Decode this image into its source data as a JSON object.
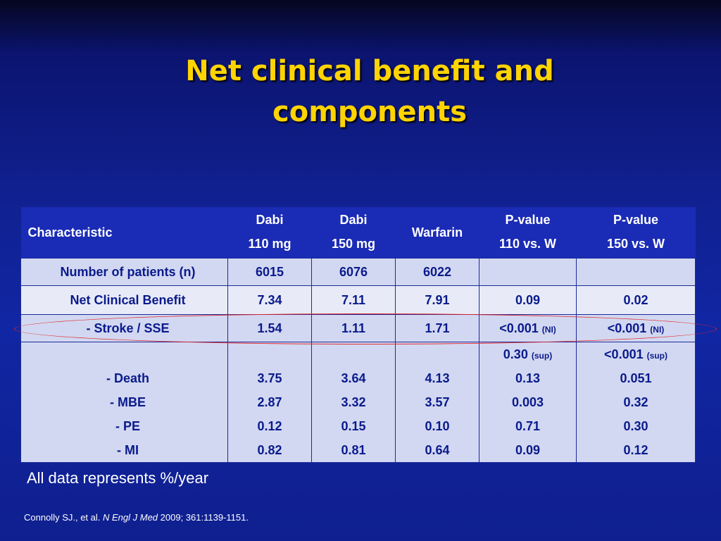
{
  "title": {
    "line1": "Net clinical benefit and",
    "line2": "components"
  },
  "table": {
    "headers": {
      "characteristic": "Characteristic",
      "dabi110": [
        "Dabi",
        "110 mg"
      ],
      "dabi150": [
        "Dabi",
        "150 mg"
      ],
      "warfarin": "Warfarin",
      "p110": [
        "P-value",
        "110 vs. W"
      ],
      "p150": [
        "P-value",
        "150 vs. W"
      ]
    },
    "rows": {
      "patients": {
        "label": "Number of patients (n)",
        "dabi110": "6015",
        "dabi150": "6076",
        "warfarin": "6022",
        "p110": "",
        "p150": ""
      },
      "ncb": {
        "label": "Net Clinical Benefit",
        "dabi110": "7.34",
        "dabi150": "7.11",
        "warfarin": "7.91",
        "p110": "0.09",
        "p150": "0.02"
      },
      "stroke": {
        "label": "- Stroke / SSE",
        "dabi110": "1.54",
        "dabi150": "1.11",
        "warfarin": "1.71",
        "p110": "<0.001",
        "p110_note": "(NI)",
        "p150": "<0.001",
        "p150_note": "(NI)"
      },
      "stroke_sup": {
        "p110": "0.30",
        "p110_note": "(sup)",
        "p150": "<0.001",
        "p150_note": "(sup)"
      },
      "death": {
        "label": "- Death",
        "dabi110": "3.75",
        "dabi150": "3.64",
        "warfarin": "4.13",
        "p110": "0.13",
        "p150": "0.051"
      },
      "mbe": {
        "label": "- MBE",
        "dabi110": "2.87",
        "dabi150": "3.32",
        "warfarin": "3.57",
        "p110": "0.003",
        "p150": "0.32"
      },
      "pe": {
        "label": "- PE",
        "dabi110": "0.12",
        "dabi150": "0.15",
        "warfarin": "0.10",
        "p110": "0.71",
        "p150": "0.30"
      },
      "mi": {
        "label": "- MI",
        "dabi110": "0.82",
        "dabi150": "0.81",
        "warfarin": "0.64",
        "p110": "0.09",
        "p150": "0.12"
      }
    }
  },
  "footnote": "All data represents %/year",
  "citation": {
    "authors": "Connolly SJ., et al. ",
    "journal": "N Engl J Med",
    "details": " 2009; 361:1139-1151."
  },
  "colors": {
    "title": "#ffd400",
    "header_bg": "#1a2bb5",
    "row_light": "#e8ebf7",
    "row_blue": "#d2d8f1",
    "highlight_oval": "#e0282b"
  }
}
